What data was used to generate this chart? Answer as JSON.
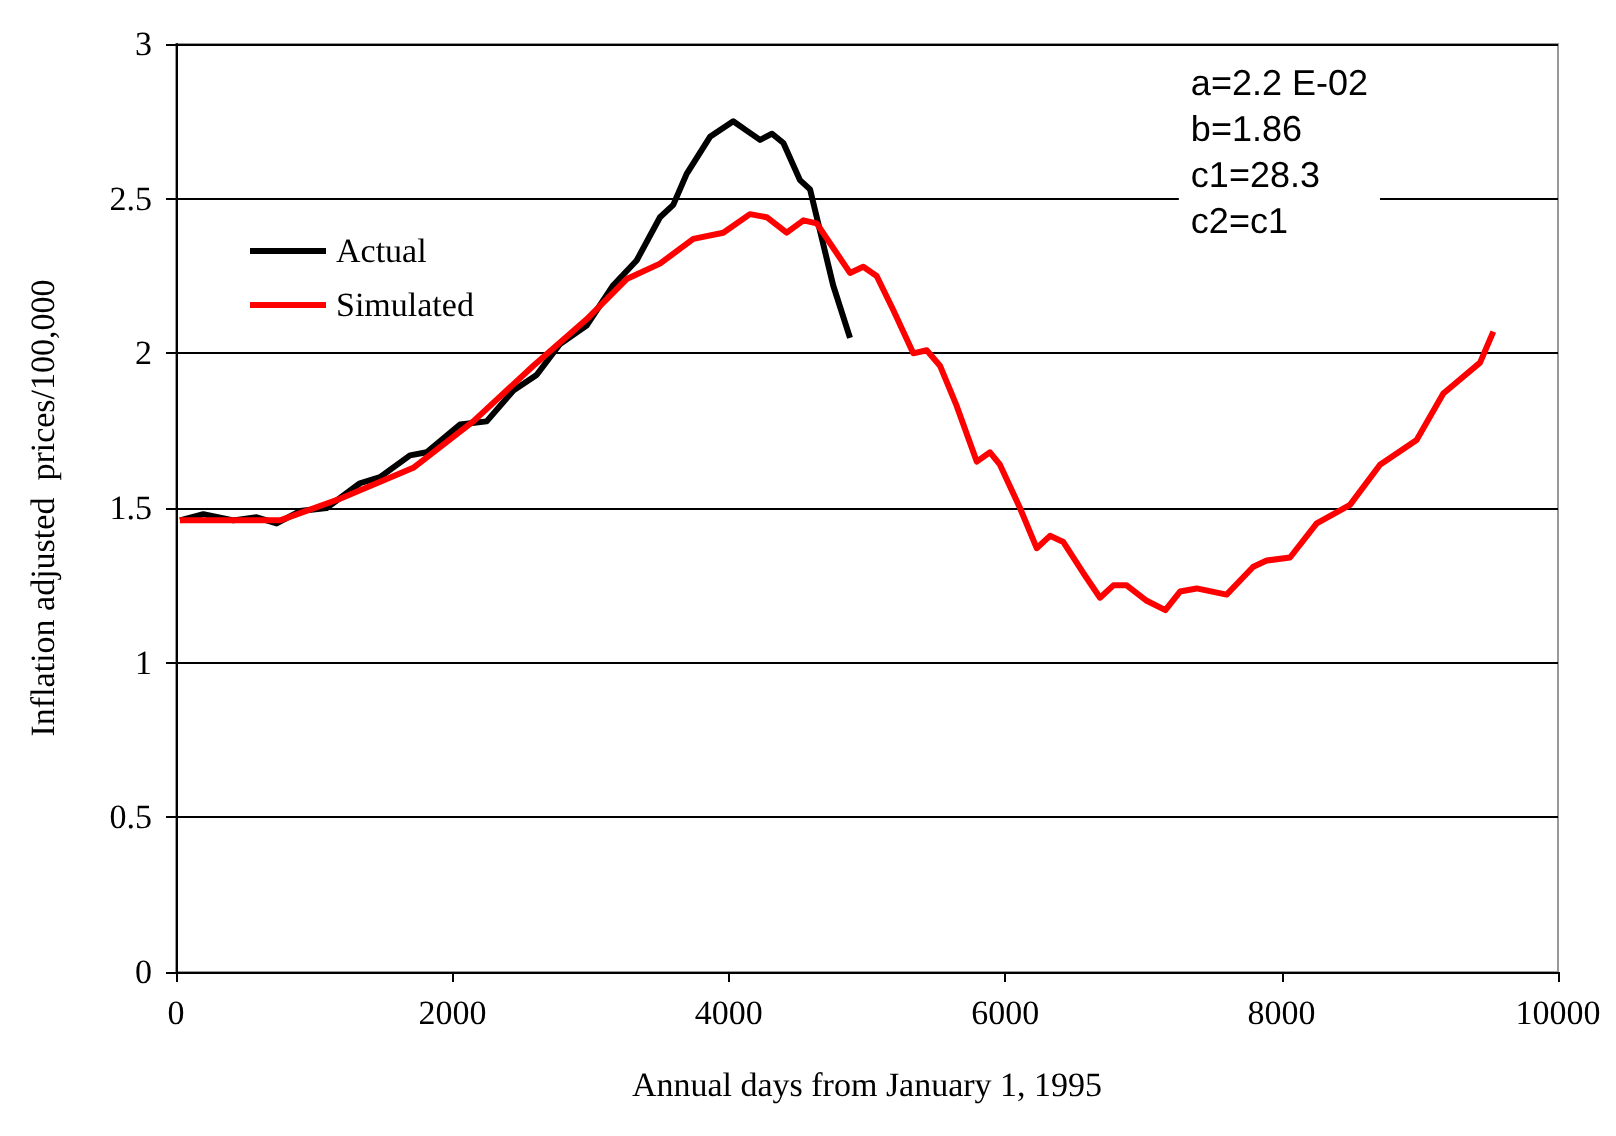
{
  "chart_data": {
    "type": "line",
    "xlabel": "Annual days from January 1, 1995",
    "ylabel": "Inflation adjusted  prices/100,000",
    "xlim": [
      0,
      10000
    ],
    "xticks": [
      0,
      2000,
      4000,
      6000,
      8000,
      10000
    ],
    "ylim": [
      0,
      3
    ],
    "yticks": [
      0,
      0.5,
      1,
      1.5,
      2,
      2.5,
      3
    ],
    "grid": "y",
    "legend": "top left",
    "marker": "none",
    "line_style": "solid",
    "annotations": [
      "a=2.2 E-02\nb=1.86\nc1=28.3\nc2=c1"
    ],
    "series": [
      {
        "name": "Actual",
        "color": "#000000",
        "x": [
          29,
          198,
          415,
          584,
          728,
          897,
          1090,
          1331,
          1476,
          1693,
          1814,
          2055,
          2248,
          2441,
          2609,
          2779,
          2971,
          3164,
          3333,
          3502,
          3598,
          3695,
          3864,
          4032,
          4129,
          4226,
          4313,
          4395,
          4515,
          4588,
          4755,
          4877
        ],
        "values": [
          1.46,
          1.48,
          1.46,
          1.47,
          1.45,
          1.49,
          1.5,
          1.58,
          1.6,
          1.67,
          1.68,
          1.77,
          1.78,
          1.88,
          1.93,
          2.03,
          2.09,
          2.22,
          2.3,
          2.44,
          2.48,
          2.58,
          2.7,
          2.75,
          2.72,
          2.69,
          2.71,
          2.68,
          2.56,
          2.53,
          2.22,
          2.05
        ]
      },
      {
        "name": "Simulated",
        "color": "#ff0000",
        "x": [
          29,
          753,
          1187,
          1717,
          2151,
          2586,
          2971,
          3261,
          3502,
          3743,
          3960,
          4153,
          4274,
          4419,
          4540,
          4636,
          4877,
          4973,
          5070,
          5190,
          5335,
          5432,
          5528,
          5649,
          5794,
          5890,
          5962,
          6107,
          6228,
          6324,
          6421,
          6565,
          6686,
          6783,
          6879,
          7024,
          7159,
          7265,
          7385,
          7602,
          7795,
          7892,
          8061,
          8254,
          8495,
          8712,
          8977,
          9170,
          9436,
          9532
        ],
        "values": [
          1.46,
          1.46,
          1.53,
          1.63,
          1.78,
          1.96,
          2.11,
          2.24,
          2.29,
          2.37,
          2.39,
          2.45,
          2.44,
          2.39,
          2.43,
          2.42,
          2.26,
          2.28,
          2.25,
          2.14,
          2.0,
          2.01,
          1.96,
          1.83,
          1.65,
          1.68,
          1.64,
          1.5,
          1.37,
          1.41,
          1.39,
          1.29,
          1.21,
          1.25,
          1.25,
          1.2,
          1.17,
          1.23,
          1.24,
          1.22,
          1.31,
          1.33,
          1.34,
          1.45,
          1.51,
          1.64,
          1.72,
          1.87,
          1.97,
          2.07
        ]
      }
    ]
  }
}
